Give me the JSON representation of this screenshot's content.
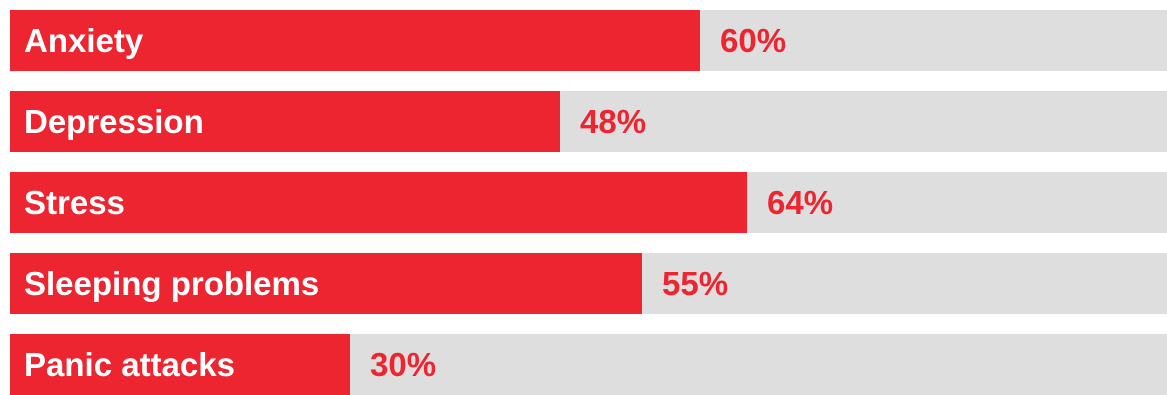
{
  "chart_data": {
    "type": "bar",
    "orientation": "horizontal",
    "categories": [
      "Anxiety",
      "Depression",
      "Stress",
      "Sleeping problems",
      "Panic attacks"
    ],
    "values": [
      60,
      48,
      64,
      55,
      30
    ],
    "value_labels": [
      "60%",
      "48%",
      "64%",
      "55%",
      "30%"
    ],
    "xlim": [
      0,
      100
    ],
    "grid": false,
    "legend": "none",
    "colors": {
      "bar": "#ec2530",
      "track": "#dedede",
      "category_text": "#ffffff",
      "value_text": "#ec2530"
    }
  }
}
